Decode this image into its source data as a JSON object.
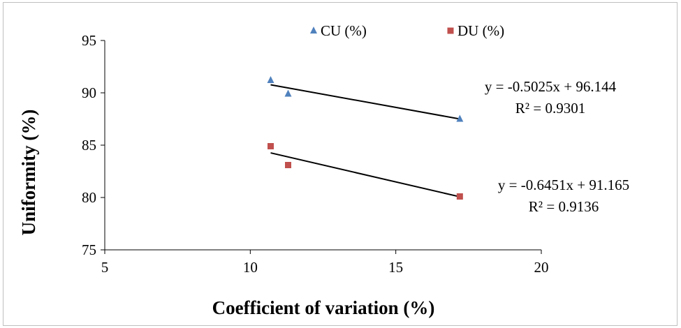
{
  "chart_data": {
    "type": "scatter",
    "title": "",
    "xlabel": "Coefficient of variation (%)",
    "ylabel": "Uniformity (%)",
    "xlim": [
      5,
      20
    ],
    "ylim": [
      75,
      95
    ],
    "xticks": [
      "5",
      "10",
      "15",
      "20"
    ],
    "yticks": [
      "75",
      "80",
      "85",
      "90",
      "95"
    ],
    "grid": false,
    "legend_position": "top",
    "series": [
      {
        "name": "CU (%)",
        "marker": "triangle",
        "color": "#4f81bd",
        "x": [
          10.7,
          11.3,
          17.2
        ],
        "y": [
          91.2,
          89.9,
          87.5
        ],
        "trendline": {
          "slope": -0.5025,
          "intercept": 96.144,
          "x_range": [
            10.7,
            17.2
          ]
        },
        "equation": "y = -0.5025x + 96.144",
        "r2": "R² = 0.9301"
      },
      {
        "name": "DU (%)",
        "marker": "square",
        "color": "#c0504d",
        "x": [
          10.7,
          11.3,
          17.2
        ],
        "y": [
          84.9,
          83.1,
          80.1
        ],
        "trendline": {
          "slope": -0.6451,
          "intercept": 91.165,
          "x_range": [
            10.7,
            17.2
          ]
        },
        "equation": "y = -0.6451x + 91.165",
        "r2": "R² = 0.9136"
      }
    ]
  }
}
